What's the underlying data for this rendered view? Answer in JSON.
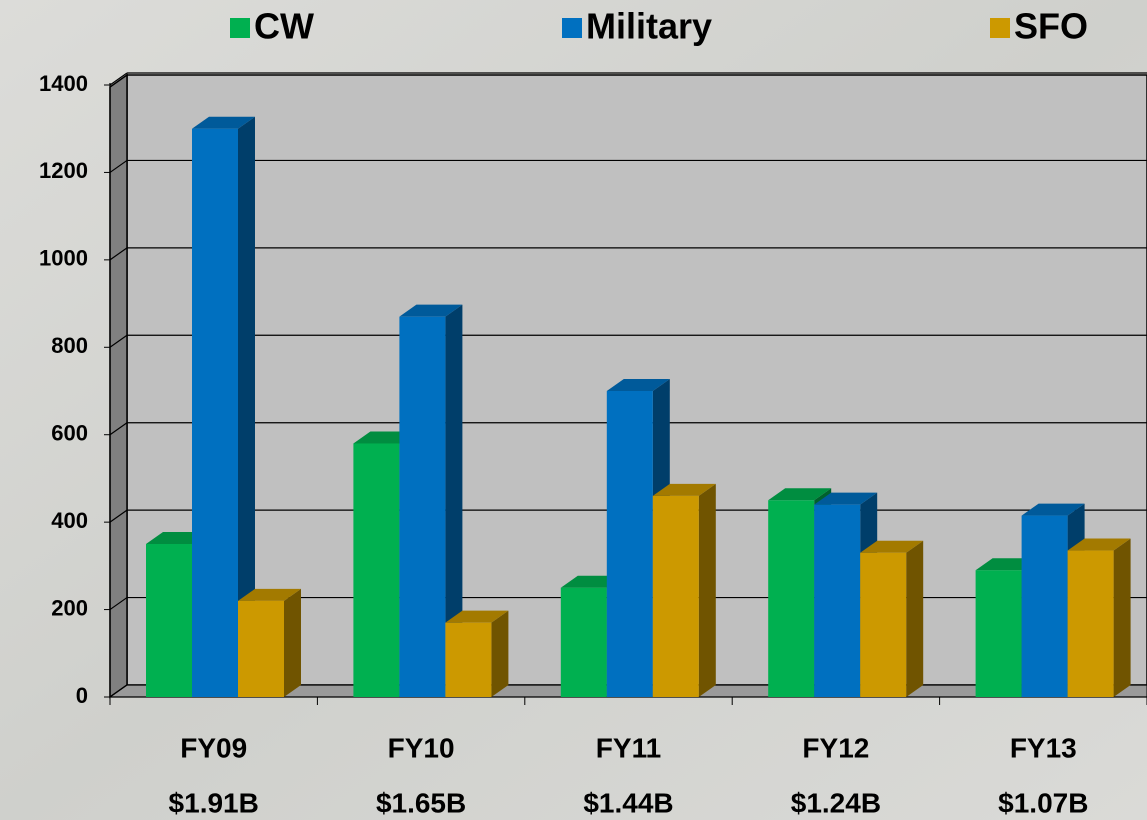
{
  "chart_data": {
    "type": "bar3d",
    "categories": [
      "FY09",
      "FY10",
      "FY11",
      "FY12",
      "FY13"
    ],
    "totals": [
      "$1.91B",
      "$1.65B",
      "$1.44B",
      "$1.24B",
      "$1.07B"
    ],
    "series": [
      {
        "name": "CW",
        "color": "#00b050",
        "values": [
          350,
          580,
          250,
          450,
          290
        ]
      },
      {
        "name": "Military",
        "color": "#0070c0",
        "values": [
          1300,
          870,
          700,
          440,
          415
        ]
      },
      {
        "name": "SFO",
        "color": "#cc9900",
        "values": [
          220,
          170,
          460,
          330,
          335
        ]
      }
    ],
    "ylim": [
      0,
      1400
    ],
    "yticks": [
      0,
      200,
      400,
      600,
      800,
      1000,
      1200,
      1400
    ],
    "grid": true
  }
}
